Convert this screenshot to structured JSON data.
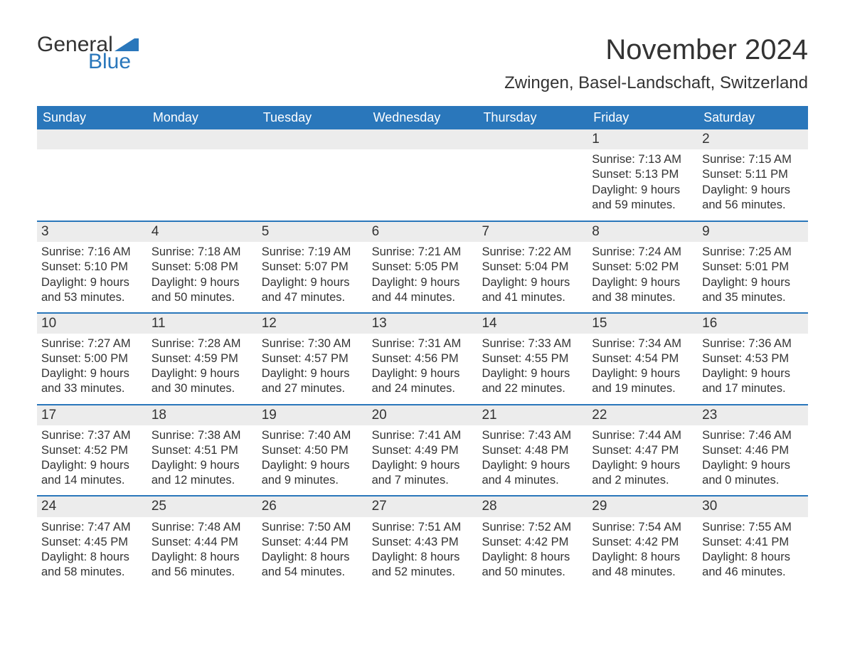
{
  "logo": {
    "word1": "General",
    "word2": "Blue",
    "icon_color": "#2a77bb",
    "text1_color": "#333333",
    "text2_color": "#2a77bb"
  },
  "title": "November 2024",
  "subtitle": "Zwingen, Basel-Landschaft, Switzerland",
  "colors": {
    "header_bg": "#2a77bb",
    "header_text": "#ffffff",
    "daynum_bg": "#ececec",
    "text": "#333333",
    "week_border": "#2a77bb",
    "background": "#ffffff"
  },
  "typography": {
    "title_fontsize": 40,
    "subtitle_fontsize": 24,
    "dayheader_fontsize": 18,
    "daynum_fontsize": 19,
    "body_fontsize": 16.5,
    "font_family": "Arial"
  },
  "layout": {
    "columns": 7,
    "rows": 5,
    "first_weekday": "Sunday"
  },
  "day_headers": [
    "Sunday",
    "Monday",
    "Tuesday",
    "Wednesday",
    "Thursday",
    "Friday",
    "Saturday"
  ],
  "weeks": [
    [
      {
        "empty": true
      },
      {
        "empty": true
      },
      {
        "empty": true
      },
      {
        "empty": true
      },
      {
        "empty": true
      },
      {
        "day": "1",
        "sunrise": "Sunrise: 7:13 AM",
        "sunset": "Sunset: 5:13 PM",
        "daylight1": "Daylight: 9 hours",
        "daylight2": "and 59 minutes."
      },
      {
        "day": "2",
        "sunrise": "Sunrise: 7:15 AM",
        "sunset": "Sunset: 5:11 PM",
        "daylight1": "Daylight: 9 hours",
        "daylight2": "and 56 minutes."
      }
    ],
    [
      {
        "day": "3",
        "sunrise": "Sunrise: 7:16 AM",
        "sunset": "Sunset: 5:10 PM",
        "daylight1": "Daylight: 9 hours",
        "daylight2": "and 53 minutes."
      },
      {
        "day": "4",
        "sunrise": "Sunrise: 7:18 AM",
        "sunset": "Sunset: 5:08 PM",
        "daylight1": "Daylight: 9 hours",
        "daylight2": "and 50 minutes."
      },
      {
        "day": "5",
        "sunrise": "Sunrise: 7:19 AM",
        "sunset": "Sunset: 5:07 PM",
        "daylight1": "Daylight: 9 hours",
        "daylight2": "and 47 minutes."
      },
      {
        "day": "6",
        "sunrise": "Sunrise: 7:21 AM",
        "sunset": "Sunset: 5:05 PM",
        "daylight1": "Daylight: 9 hours",
        "daylight2": "and 44 minutes."
      },
      {
        "day": "7",
        "sunrise": "Sunrise: 7:22 AM",
        "sunset": "Sunset: 5:04 PM",
        "daylight1": "Daylight: 9 hours",
        "daylight2": "and 41 minutes."
      },
      {
        "day": "8",
        "sunrise": "Sunrise: 7:24 AM",
        "sunset": "Sunset: 5:02 PM",
        "daylight1": "Daylight: 9 hours",
        "daylight2": "and 38 minutes."
      },
      {
        "day": "9",
        "sunrise": "Sunrise: 7:25 AM",
        "sunset": "Sunset: 5:01 PM",
        "daylight1": "Daylight: 9 hours",
        "daylight2": "and 35 minutes."
      }
    ],
    [
      {
        "day": "10",
        "sunrise": "Sunrise: 7:27 AM",
        "sunset": "Sunset: 5:00 PM",
        "daylight1": "Daylight: 9 hours",
        "daylight2": "and 33 minutes."
      },
      {
        "day": "11",
        "sunrise": "Sunrise: 7:28 AM",
        "sunset": "Sunset: 4:59 PM",
        "daylight1": "Daylight: 9 hours",
        "daylight2": "and 30 minutes."
      },
      {
        "day": "12",
        "sunrise": "Sunrise: 7:30 AM",
        "sunset": "Sunset: 4:57 PM",
        "daylight1": "Daylight: 9 hours",
        "daylight2": "and 27 minutes."
      },
      {
        "day": "13",
        "sunrise": "Sunrise: 7:31 AM",
        "sunset": "Sunset: 4:56 PM",
        "daylight1": "Daylight: 9 hours",
        "daylight2": "and 24 minutes."
      },
      {
        "day": "14",
        "sunrise": "Sunrise: 7:33 AM",
        "sunset": "Sunset: 4:55 PM",
        "daylight1": "Daylight: 9 hours",
        "daylight2": "and 22 minutes."
      },
      {
        "day": "15",
        "sunrise": "Sunrise: 7:34 AM",
        "sunset": "Sunset: 4:54 PM",
        "daylight1": "Daylight: 9 hours",
        "daylight2": "and 19 minutes."
      },
      {
        "day": "16",
        "sunrise": "Sunrise: 7:36 AM",
        "sunset": "Sunset: 4:53 PM",
        "daylight1": "Daylight: 9 hours",
        "daylight2": "and 17 minutes."
      }
    ],
    [
      {
        "day": "17",
        "sunrise": "Sunrise: 7:37 AM",
        "sunset": "Sunset: 4:52 PM",
        "daylight1": "Daylight: 9 hours",
        "daylight2": "and 14 minutes."
      },
      {
        "day": "18",
        "sunrise": "Sunrise: 7:38 AM",
        "sunset": "Sunset: 4:51 PM",
        "daylight1": "Daylight: 9 hours",
        "daylight2": "and 12 minutes."
      },
      {
        "day": "19",
        "sunrise": "Sunrise: 7:40 AM",
        "sunset": "Sunset: 4:50 PM",
        "daylight1": "Daylight: 9 hours",
        "daylight2": "and 9 minutes."
      },
      {
        "day": "20",
        "sunrise": "Sunrise: 7:41 AM",
        "sunset": "Sunset: 4:49 PM",
        "daylight1": "Daylight: 9 hours",
        "daylight2": "and 7 minutes."
      },
      {
        "day": "21",
        "sunrise": "Sunrise: 7:43 AM",
        "sunset": "Sunset: 4:48 PM",
        "daylight1": "Daylight: 9 hours",
        "daylight2": "and 4 minutes."
      },
      {
        "day": "22",
        "sunrise": "Sunrise: 7:44 AM",
        "sunset": "Sunset: 4:47 PM",
        "daylight1": "Daylight: 9 hours",
        "daylight2": "and 2 minutes."
      },
      {
        "day": "23",
        "sunrise": "Sunrise: 7:46 AM",
        "sunset": "Sunset: 4:46 PM",
        "daylight1": "Daylight: 9 hours",
        "daylight2": "and 0 minutes."
      }
    ],
    [
      {
        "day": "24",
        "sunrise": "Sunrise: 7:47 AM",
        "sunset": "Sunset: 4:45 PM",
        "daylight1": "Daylight: 8 hours",
        "daylight2": "and 58 minutes."
      },
      {
        "day": "25",
        "sunrise": "Sunrise: 7:48 AM",
        "sunset": "Sunset: 4:44 PM",
        "daylight1": "Daylight: 8 hours",
        "daylight2": "and 56 minutes."
      },
      {
        "day": "26",
        "sunrise": "Sunrise: 7:50 AM",
        "sunset": "Sunset: 4:44 PM",
        "daylight1": "Daylight: 8 hours",
        "daylight2": "and 54 minutes."
      },
      {
        "day": "27",
        "sunrise": "Sunrise: 7:51 AM",
        "sunset": "Sunset: 4:43 PM",
        "daylight1": "Daylight: 8 hours",
        "daylight2": "and 52 minutes."
      },
      {
        "day": "28",
        "sunrise": "Sunrise: 7:52 AM",
        "sunset": "Sunset: 4:42 PM",
        "daylight1": "Daylight: 8 hours",
        "daylight2": "and 50 minutes."
      },
      {
        "day": "29",
        "sunrise": "Sunrise: 7:54 AM",
        "sunset": "Sunset: 4:42 PM",
        "daylight1": "Daylight: 8 hours",
        "daylight2": "and 48 minutes."
      },
      {
        "day": "30",
        "sunrise": "Sunrise: 7:55 AM",
        "sunset": "Sunset: 4:41 PM",
        "daylight1": "Daylight: 8 hours",
        "daylight2": "and 46 minutes."
      }
    ]
  ]
}
